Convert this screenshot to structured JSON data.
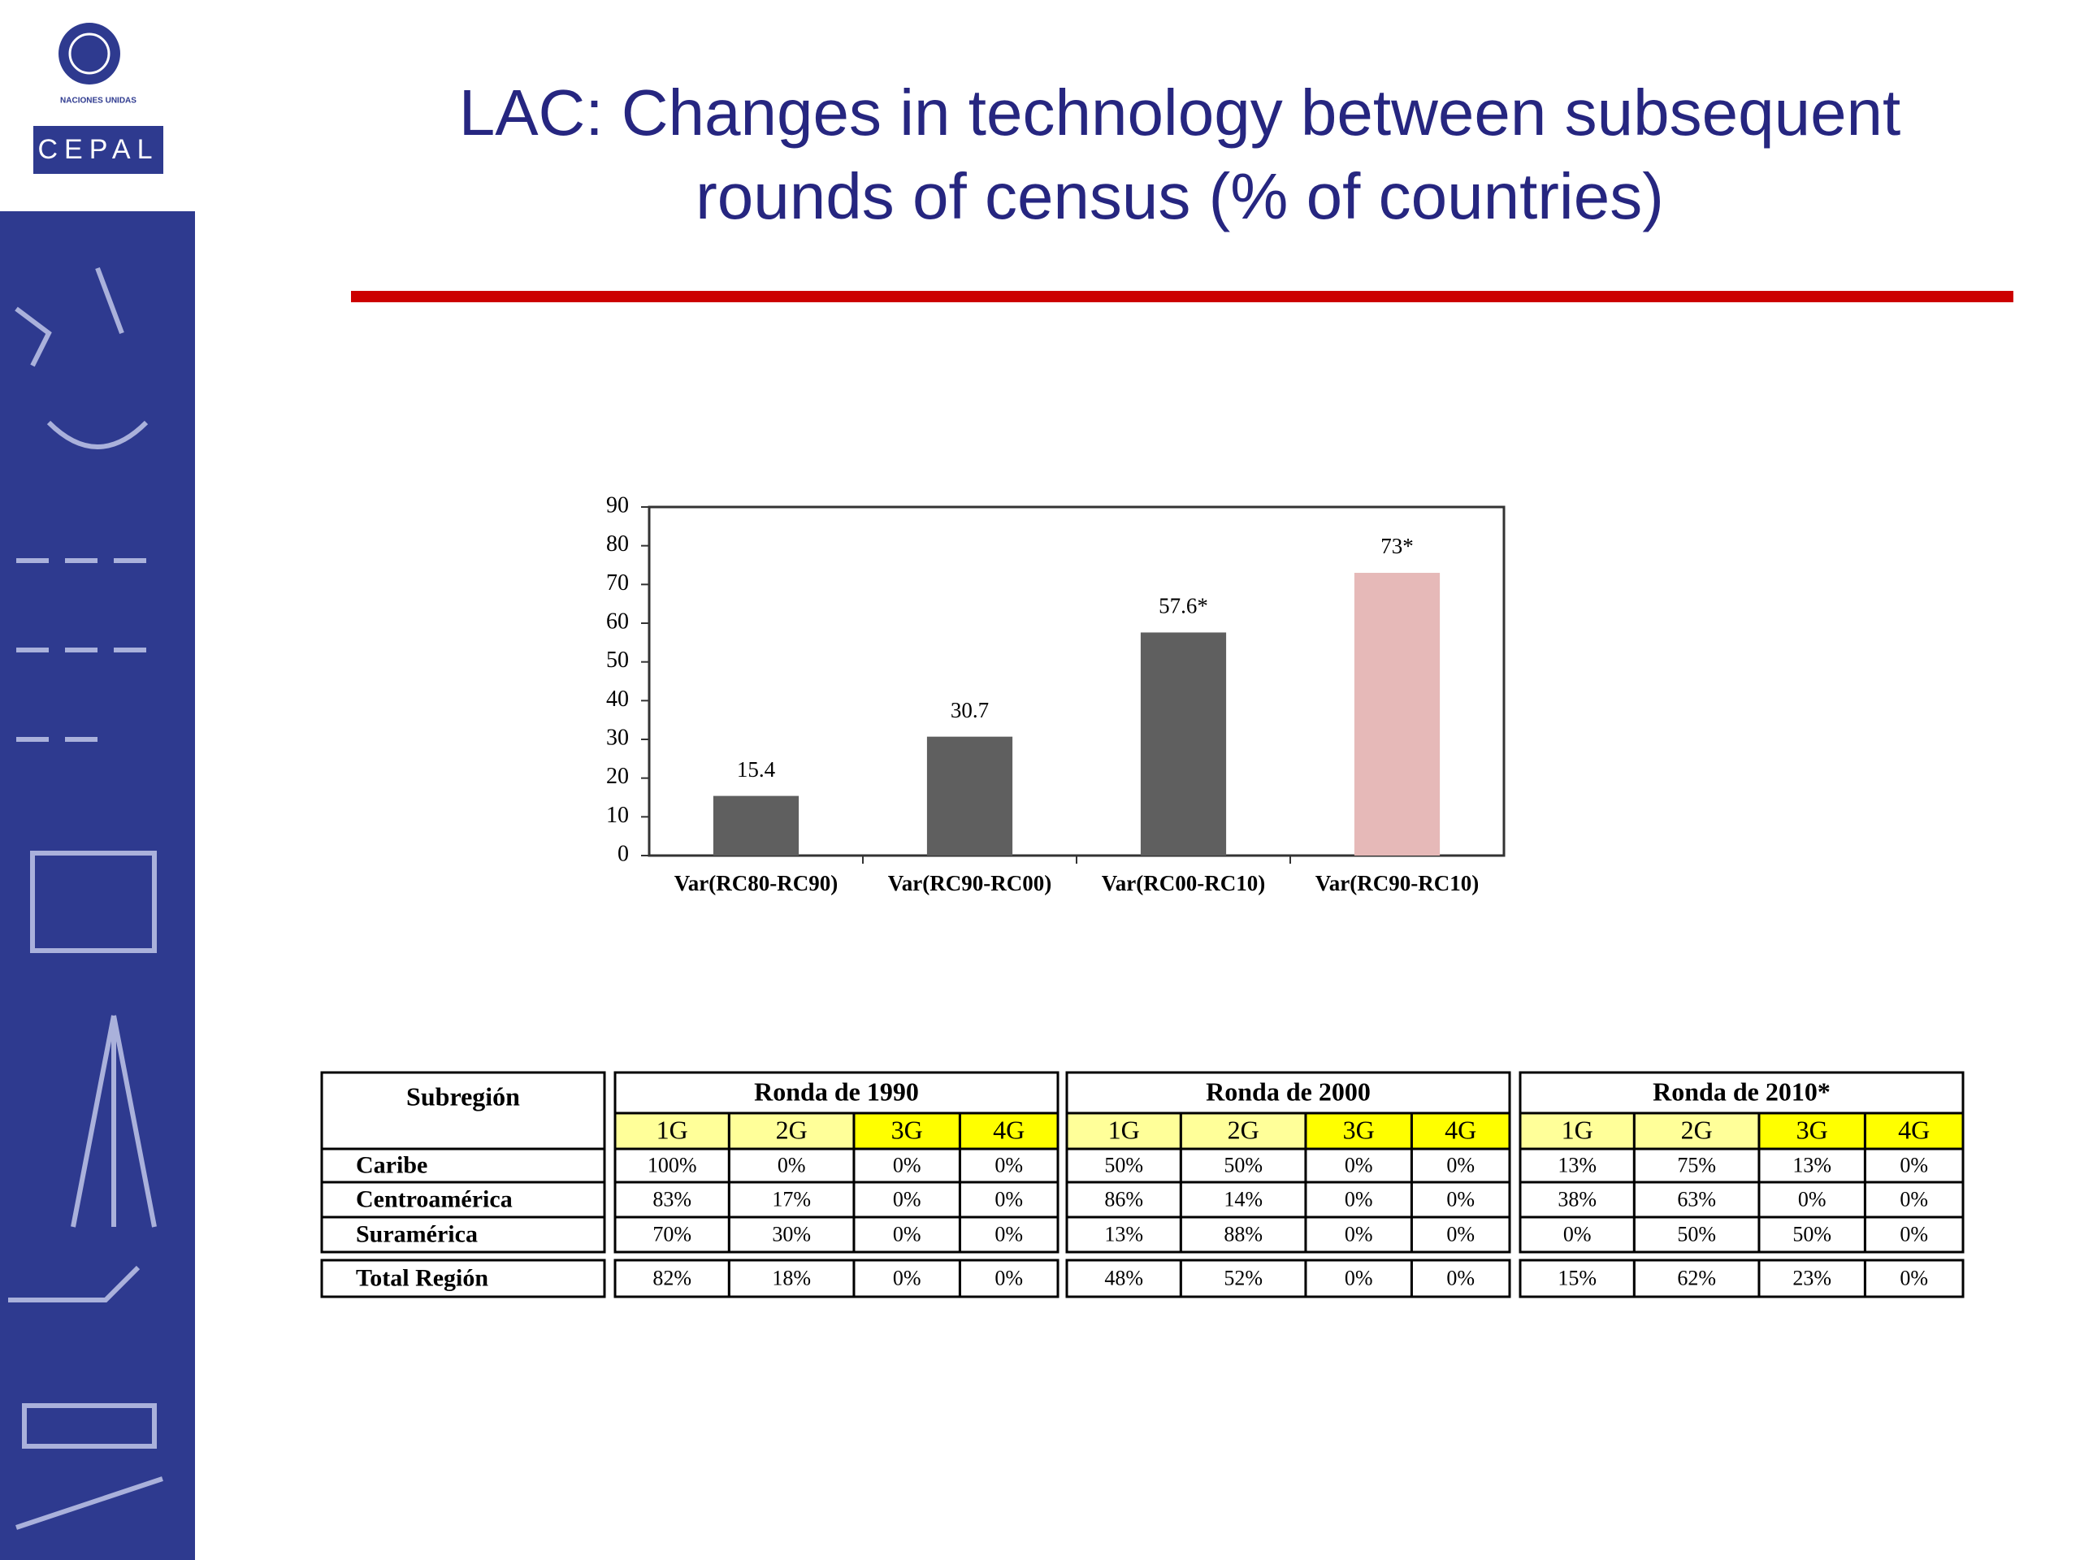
{
  "header": {
    "org": "NACIONES UNIDAS",
    "logo": "CEPAL",
    "title": [
      "LAC: Changes in technology between subsequent",
      "rounds of census (% of countries)"
    ]
  },
  "chart_data": {
    "type": "bar",
    "categories": [
      "Var(RC80-RC90)",
      "Var(RC90-RC00)",
      "Var(RC00-RC10)",
      "Var(RC90-RC10)"
    ],
    "values": [
      15.4,
      30.7,
      57.6,
      73
    ],
    "value_labels": [
      "15.4",
      "30.7",
      "57.6*",
      "73*"
    ],
    "colors": [
      "#5f5f5f",
      "#5f5f5f",
      "#5f5f5f",
      "#e6b9b8"
    ],
    "ylim": [
      0,
      90
    ],
    "yticks": [
      0,
      10,
      20,
      30,
      40,
      50,
      60,
      70,
      80,
      90
    ],
    "grid": false
  },
  "table": {
    "corner": "Subregión",
    "groups": [
      {
        "name": "Ronda de 1990",
        "columns": [
          "1G",
          "2G",
          "3G",
          "4G"
        ]
      },
      {
        "name": "Ronda de 2000",
        "columns": [
          "1G",
          "2G",
          "3G",
          "4G"
        ]
      },
      {
        "name": "Ronda de 2010*",
        "columns": [
          "1G",
          "2G",
          "3G",
          "4G"
        ]
      }
    ],
    "rows": [
      {
        "label": "Caribe",
        "cells": [
          "100%",
          "0%",
          "0%",
          "0%",
          "50%",
          "50%",
          "0%",
          "0%",
          "13%",
          "75%",
          "13%",
          "0%"
        ]
      },
      {
        "label": "Centroamérica",
        "cells": [
          "83%",
          "17%",
          "0%",
          "0%",
          "86%",
          "14%",
          "0%",
          "0%",
          "38%",
          "63%",
          "0%",
          "0%"
        ]
      },
      {
        "label": "Suramérica",
        "cells": [
          "70%",
          "30%",
          "0%",
          "0%",
          "13%",
          "88%",
          "0%",
          "0%",
          "0%",
          "50%",
          "50%",
          "0%"
        ]
      }
    ],
    "total": {
      "label": "Total Región",
      "cells": [
        "82%",
        "18%",
        "0%",
        "0%",
        "48%",
        "52%",
        "0%",
        "0%",
        "15%",
        "62%",
        "23%",
        "0%"
      ]
    }
  }
}
